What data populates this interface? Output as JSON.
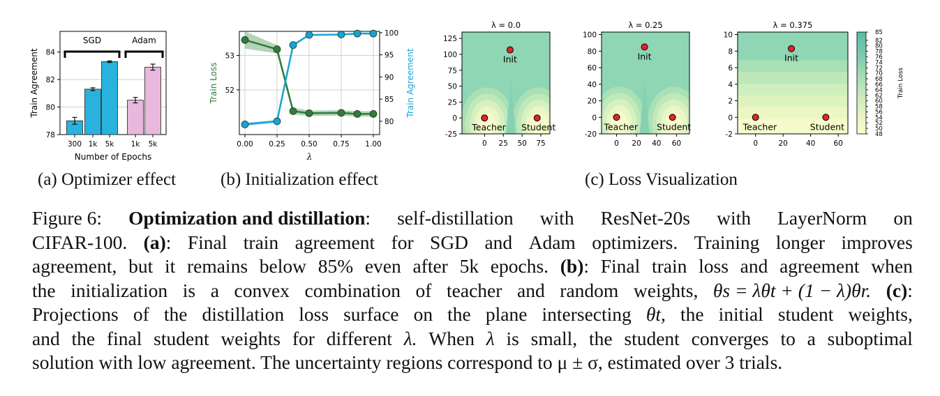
{
  "subplot_captions": {
    "a": "(a) Optimizer effect",
    "b": "(b) Initialization effect",
    "c": "(c) Loss Visualization"
  },
  "caption": {
    "figure_label": "Figure 6:",
    "title": "Optimization and distillation",
    "lines": [
      [
        "Figure 6:",
        "Optimization and distillation:",
        "self-distillation",
        "with",
        "ResNet-20s",
        "with",
        "LayerNorm",
        "on"
      ],
      [
        "CIFAR-100.",
        "(a):",
        "Final",
        "train",
        "agreement",
        "for",
        "SGD",
        "and",
        "Adam",
        "optimizers.",
        "Training",
        "longer",
        "improves"
      ],
      [
        "agreement,",
        "but",
        "it",
        "remains",
        "below",
        "85%",
        "even",
        "after",
        "5k",
        "epochs.",
        "(b):",
        "Final",
        "train",
        "loss",
        "and",
        "agreement",
        "when"
      ],
      [
        "the",
        "initialization",
        "is",
        "a",
        "convex",
        "combination",
        "of",
        "teacher",
        "and",
        "random",
        "weights,",
        "θs = λθt + (1 − λ)θr.",
        "(c):"
      ],
      [
        "Projections",
        "of",
        "the",
        "distillation",
        "loss",
        "surface",
        "on",
        "the",
        "plane",
        "intersecting",
        "θt,",
        "the",
        "initial",
        "student",
        "weights,"
      ],
      [
        "and",
        "the",
        "final",
        "student",
        "weights",
        "for",
        "different",
        "λ.",
        "When",
        "λ",
        "is",
        "small,",
        "the",
        "student",
        "converges",
        "to",
        "a",
        "suboptimal"
      ],
      [
        "solution with low agreement. The uncertainty regions correspond to μ ± σ, estimated over 3 trials."
      ]
    ]
  },
  "chart_data": [
    {
      "type": "bar",
      "id": "a",
      "ylabel": "Train Agreement",
      "xlabel": "Number of Epochs",
      "ylim": [
        78,
        85.5
      ],
      "yticks": [
        78,
        80,
        82,
        84
      ],
      "groups": [
        {
          "name": "SGD",
          "color": "#29b3dc",
          "categories": [
            "300",
            "1k",
            "5k"
          ],
          "values": [
            79.0,
            81.3,
            83.3
          ],
          "errors": [
            0.25,
            0.1,
            0.06
          ]
        },
        {
          "name": "Adam",
          "color": "#e8b8dd",
          "categories": [
            "1k",
            "5k"
          ],
          "values": [
            80.5,
            82.9
          ],
          "errors": [
            0.2,
            0.22
          ]
        }
      ],
      "grid": true
    },
    {
      "type": "line",
      "id": "b",
      "xlabel": "λ",
      "x": [
        0.0,
        0.25,
        0.375,
        0.5,
        0.75,
        0.875,
        1.0
      ],
      "xticks": [
        "0.00",
        "0.25",
        "0.50",
        "0.75",
        "1.00"
      ],
      "left_axis": {
        "label": "Train Loss",
        "color": "#2e7d3a",
        "ylim": [
          50.7,
          53.7
        ],
        "yticks": [
          52,
          53
        ]
      },
      "right_axis": {
        "label": "Train Agreement",
        "color": "#18a3d2",
        "ylim": [
          77,
          100.3
        ],
        "yticks": [
          80,
          85,
          90,
          95,
          100
        ]
      },
      "series": [
        {
          "axis": "left",
          "color": "#2e7d3a",
          "values": [
            53.45,
            53.18,
            51.38,
            51.32,
            51.33,
            51.3,
            51.3
          ],
          "band": [
            0.25,
            0.12,
            0.1,
            0.08,
            0.08,
            0.08,
            0.08
          ]
        },
        {
          "axis": "right",
          "color": "#18a3d2",
          "values": [
            79.3,
            80.0,
            97.2,
            99.5,
            99.6,
            99.8,
            99.8
          ],
          "band": [
            0.4,
            0.3,
            0.3,
            0.15,
            0.1,
            0.1,
            0.1
          ]
        }
      ],
      "grid": true
    },
    {
      "type": "contour",
      "id": "c",
      "colorbar": {
        "label": "Train Loss",
        "ticks": [
          48,
          50,
          52,
          54,
          56,
          58,
          60,
          62,
          64,
          66,
          68,
          70,
          72,
          74,
          76,
          78,
          80,
          82,
          85
        ]
      },
      "panels": [
        {
          "title": "λ = 0.0",
          "xlim": [
            -30,
            87
          ],
          "ylim": [
            -25,
            135
          ],
          "xticks": [
            0,
            25,
            50,
            75
          ],
          "yticks": [
            -25,
            0,
            25,
            50,
            75,
            100,
            125
          ],
          "points": [
            {
              "label": "Teacher",
              "x": 0,
              "y": 0
            },
            {
              "label": "Student",
              "x": 70,
              "y": 0
            },
            {
              "label": "Init",
              "x": 34,
              "y": 107
            }
          ]
        },
        {
          "title": "λ = 0.25",
          "xlim": [
            -15,
            73
          ],
          "ylim": [
            -20,
            103
          ],
          "xticks": [
            0,
            20,
            40,
            60
          ],
          "yticks": [
            -20,
            0,
            20,
            40,
            60,
            80,
            100
          ],
          "points": [
            {
              "label": "Teacher",
              "x": 0,
              "y": 0
            },
            {
              "label": "Student",
              "x": 56,
              "y": 0
            },
            {
              "label": "Init",
              "x": 28,
              "y": 85
            }
          ]
        },
        {
          "title": "λ = 0.375",
          "xlim": [
            -13,
            67
          ],
          "ylim": [
            -2,
            10.3
          ],
          "xticks": [
            0,
            20,
            40,
            60
          ],
          "yticks": [
            -2,
            0,
            2,
            4,
            6,
            8,
            10
          ],
          "points": [
            {
              "label": "Teacher",
              "x": 0,
              "y": 0
            },
            {
              "label": "Student",
              "x": 51,
              "y": 0
            },
            {
              "label": "Init",
              "x": 26,
              "y": 8.3
            }
          ]
        }
      ]
    }
  ]
}
